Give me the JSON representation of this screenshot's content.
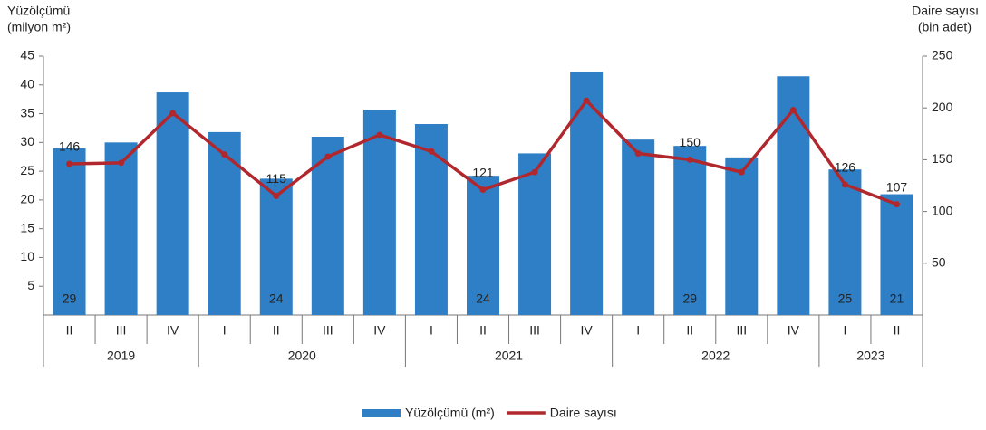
{
  "chart_data": {
    "type": "bar-line",
    "ylabel": [
      "Yüzölçümü",
      "(milyon m²)"
    ],
    "y2label": [
      "Daire sayısı",
      "(bin adet)"
    ],
    "categories": [
      "II",
      "III",
      "IV",
      "I",
      "II",
      "III",
      "IV",
      "I",
      "II",
      "III",
      "IV",
      "I",
      "II",
      "III",
      "IV",
      "I",
      "II"
    ],
    "groups": [
      {
        "label": "2019",
        "span": 3
      },
      {
        "label": "2020",
        "span": 4
      },
      {
        "label": "2021",
        "span": 4
      },
      {
        "label": "2022",
        "span": 4
      },
      {
        "label": "2023",
        "span": 2
      }
    ],
    "series": [
      {
        "name": "Yüzölçümü (m²)",
        "type": "bar",
        "color": "#2f7fc6",
        "values": [
          29,
          30,
          38.7,
          31.8,
          23.7,
          31,
          35.7,
          33.2,
          24.2,
          28.1,
          42.2,
          30.5,
          29.4,
          27.4,
          41.5,
          25.3,
          21
        ],
        "value_labels": [
          "29",
          null,
          null,
          null,
          "24",
          null,
          null,
          null,
          "24",
          null,
          null,
          null,
          "29",
          null,
          null,
          "25",
          "21"
        ]
      },
      {
        "name": "Daire sayısı",
        "type": "line",
        "axis": "y2",
        "color": "#b0282d",
        "values": [
          146,
          147,
          195,
          155,
          115,
          153,
          174,
          158,
          121,
          138,
          207,
          156,
          150,
          138,
          198,
          126,
          107
        ],
        "value_labels": [
          "146",
          null,
          null,
          null,
          "115",
          null,
          null,
          null,
          "121",
          null,
          null,
          null,
          "150",
          null,
          null,
          "126",
          "107"
        ]
      }
    ],
    "ylim": [
      0,
      45
    ],
    "yticks": [
      5,
      10,
      15,
      20,
      25,
      30,
      35,
      40,
      45
    ],
    "y2lim": [
      0,
      250
    ],
    "y2ticks": [
      50,
      100,
      150,
      200,
      250
    ]
  }
}
